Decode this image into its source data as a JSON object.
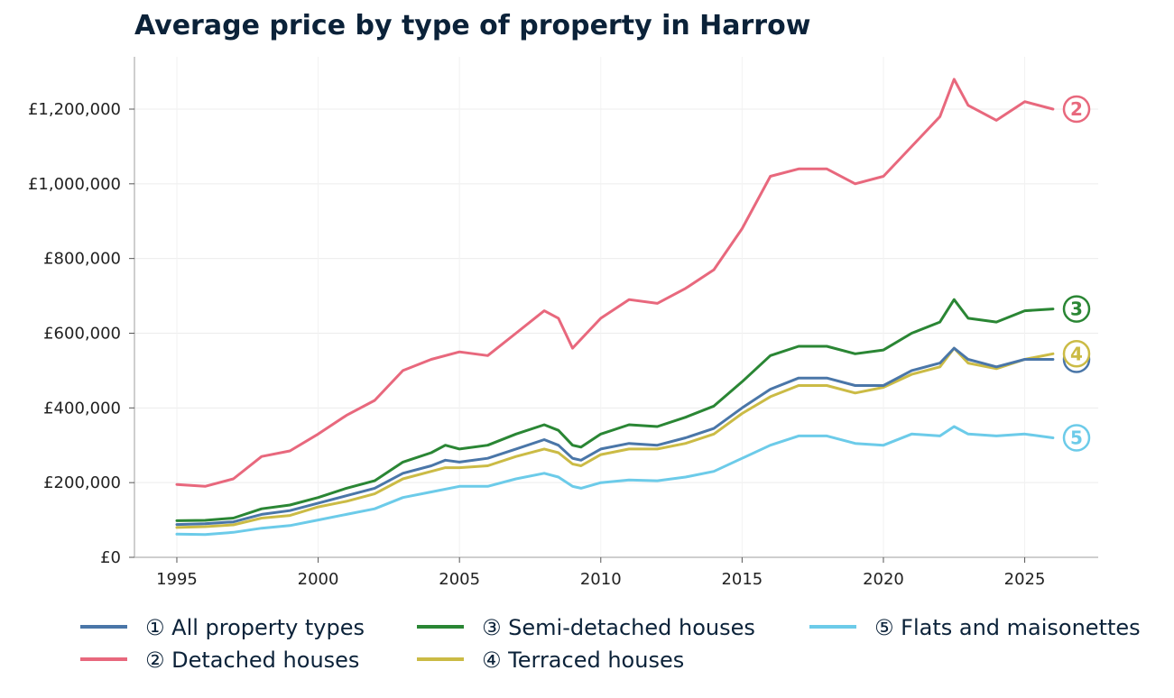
{
  "chart_data": {
    "type": "line",
    "title": "Average price by type of property in Harrow",
    "xlabel": "",
    "ylabel": "",
    "xlim": [
      1993.5,
      2027.6
    ],
    "ylim": [
      0,
      1340000
    ],
    "x_ticks": [
      1995,
      2000,
      2005,
      2010,
      2015,
      2020,
      2025
    ],
    "x_tick_labels": [
      "1995",
      "2000",
      "2005",
      "2010",
      "2015",
      "2020",
      "2025"
    ],
    "y_ticks": [
      0,
      200000,
      400000,
      600000,
      800000,
      1000000,
      1200000
    ],
    "y_tick_labels": [
      "£0",
      "£200,000",
      "£400,000",
      "£600,000",
      "£800,000",
      "£1,000,000",
      "£1,200,000"
    ],
    "grid": true,
    "legend_position": "bottom",
    "series": [
      {
        "name": "① All property types",
        "marker": "1",
        "color": "#4a76a8",
        "x": [
          1995,
          1996,
          1997,
          1998,
          1999,
          2000,
          2001,
          2002,
          2003,
          2004,
          2004.5,
          2005,
          2006,
          2007,
          2008,
          2008.5,
          2009,
          2009.3,
          2010,
          2011,
          2012,
          2013,
          2014,
          2015,
          2016,
          2017,
          2018,
          2019,
          2020,
          2021,
          2022,
          2022.5,
          2023,
          2024,
          2025,
          2026
        ],
        "y": [
          88000,
          90000,
          95000,
          115000,
          125000,
          145000,
          165000,
          185000,
          225000,
          245000,
          260000,
          255000,
          265000,
          290000,
          315000,
          300000,
          265000,
          260000,
          290000,
          305000,
          300000,
          320000,
          345000,
          400000,
          450000,
          480000,
          480000,
          460000,
          460000,
          500000,
          520000,
          560000,
          530000,
          510000,
          530000,
          530000
        ]
      },
      {
        "name": "② Detached houses",
        "marker": "2",
        "color": "#e8687d",
        "x": [
          1995,
          1996,
          1997,
          1998,
          1999,
          2000,
          2001,
          2002,
          2003,
          2004,
          2005,
          2006,
          2007,
          2008,
          2008.5,
          2009,
          2009.5,
          2010,
          2011,
          2012,
          2013,
          2014,
          2015,
          2016,
          2017,
          2018,
          2019,
          2020,
          2021,
          2022,
          2022.5,
          2023,
          2024,
          2025,
          2026
        ],
        "y": [
          195000,
          190000,
          210000,
          270000,
          285000,
          330000,
          380000,
          420000,
          500000,
          530000,
          550000,
          540000,
          600000,
          660000,
          640000,
          560000,
          600000,
          640000,
          690000,
          680000,
          720000,
          770000,
          880000,
          1020000,
          1040000,
          1040000,
          1000000,
          1020000,
          1100000,
          1180000,
          1280000,
          1210000,
          1170000,
          1220000,
          1200000
        ]
      },
      {
        "name": "③ Semi-detached houses",
        "marker": "3",
        "color": "#2a8634",
        "x": [
          1995,
          1996,
          1997,
          1998,
          1999,
          2000,
          2001,
          2002,
          2003,
          2004,
          2004.5,
          2005,
          2006,
          2007,
          2008,
          2008.5,
          2009,
          2009.3,
          2010,
          2011,
          2012,
          2013,
          2014,
          2015,
          2016,
          2017,
          2018,
          2019,
          2020,
          2021,
          2022,
          2022.5,
          2023,
          2024,
          2025,
          2026
        ],
        "y": [
          98000,
          99000,
          105000,
          130000,
          140000,
          160000,
          185000,
          205000,
          255000,
          280000,
          300000,
          290000,
          300000,
          330000,
          355000,
          340000,
          300000,
          295000,
          330000,
          355000,
          350000,
          375000,
          405000,
          470000,
          540000,
          565000,
          565000,
          545000,
          555000,
          600000,
          630000,
          690000,
          640000,
          630000,
          660000,
          665000
        ]
      },
      {
        "name": "④ Terraced houses",
        "marker": "4",
        "color": "#cbbb45",
        "x": [
          1995,
          1996,
          1997,
          1998,
          1999,
          2000,
          2001,
          2002,
          2003,
          2004,
          2004.5,
          2005,
          2006,
          2007,
          2008,
          2008.5,
          2009,
          2009.3,
          2010,
          2011,
          2012,
          2013,
          2014,
          2015,
          2016,
          2017,
          2018,
          2019,
          2020,
          2021,
          2022,
          2022.5,
          2023,
          2024,
          2025,
          2026
        ],
        "y": [
          80000,
          82000,
          87000,
          105000,
          112000,
          135000,
          150000,
          170000,
          210000,
          230000,
          240000,
          240000,
          245000,
          270000,
          290000,
          280000,
          250000,
          245000,
          275000,
          290000,
          290000,
          305000,
          330000,
          385000,
          430000,
          460000,
          460000,
          440000,
          455000,
          490000,
          510000,
          560000,
          520000,
          505000,
          530000,
          545000
        ]
      },
      {
        "name": "⑤ Flats and maisonettes",
        "marker": "5",
        "color": "#6ccbe9",
        "x": [
          1995,
          1996,
          1997,
          1998,
          1999,
          2000,
          2001,
          2002,
          2003,
          2004,
          2005,
          2006,
          2007,
          2008,
          2008.5,
          2009,
          2009.3,
          2010,
          2011,
          2012,
          2013,
          2014,
          2015,
          2016,
          2017,
          2018,
          2019,
          2020,
          2021,
          2022,
          2022.5,
          2023,
          2024,
          2025,
          2026
        ],
        "y": [
          62000,
          61000,
          67000,
          78000,
          85000,
          100000,
          115000,
          130000,
          160000,
          175000,
          190000,
          190000,
          210000,
          225000,
          215000,
          190000,
          185000,
          200000,
          207000,
          205000,
          215000,
          230000,
          265000,
          300000,
          325000,
          325000,
          305000,
          300000,
          330000,
          325000,
          350000,
          330000,
          325000,
          330000,
          320000
        ]
      }
    ]
  }
}
